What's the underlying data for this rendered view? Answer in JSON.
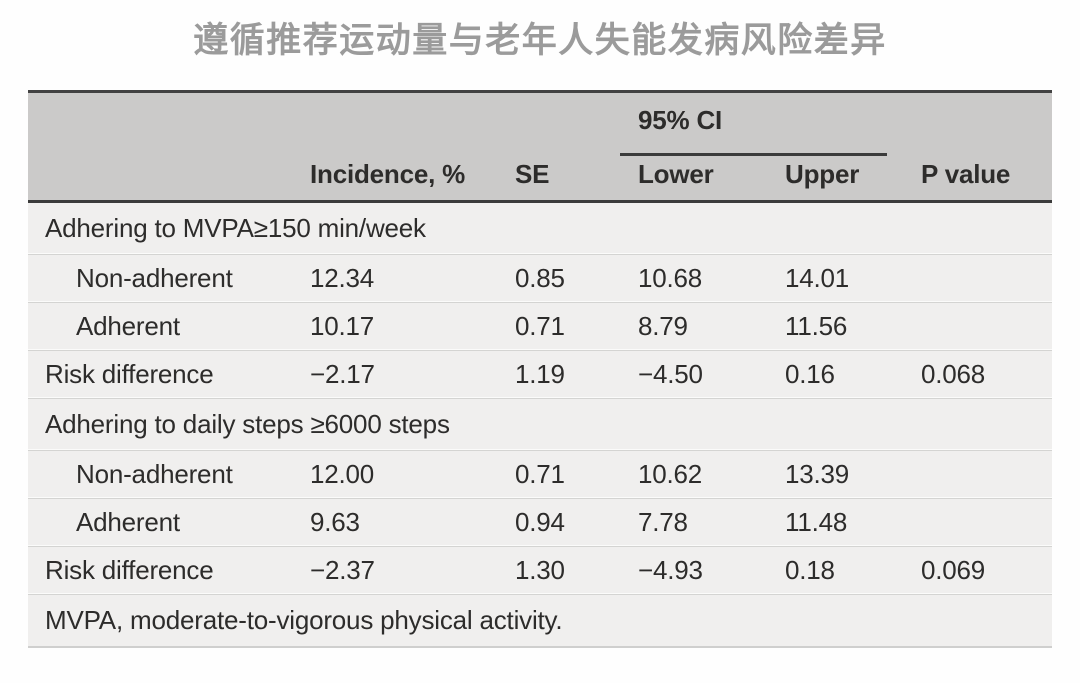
{
  "page": {
    "title": "遵循推荐运动量与老年人失能发病风险差异"
  },
  "table": {
    "header": {
      "ci_group_label": "95% CI",
      "columns": {
        "incidence": "Incidence, %",
        "se": "SE",
        "lower": "Lower",
        "upper": "Upper",
        "p": "P value"
      }
    },
    "sections": [
      {
        "label": "Adhering to MVPA≥150 min/week",
        "rows": [
          {
            "label": "Non-adherent",
            "incidence": "12.34",
            "se": "0.85",
            "lower": "10.68",
            "upper": "14.01",
            "p": ""
          },
          {
            "label": "Adherent",
            "incidence": "10.17",
            "se": "0.71",
            "lower": "8.79",
            "upper": "11.56",
            "p": ""
          },
          {
            "label": "Risk difference",
            "incidence": "−2.17",
            "se": "1.19",
            "lower": "−4.50",
            "upper": "0.16",
            "p": "0.068"
          }
        ]
      },
      {
        "label": "Adhering to daily steps ≥6000 steps",
        "rows": [
          {
            "label": "Non-adherent",
            "incidence": "12.00",
            "se": "0.71",
            "lower": "10.62",
            "upper": "13.39",
            "p": ""
          },
          {
            "label": "Adherent",
            "incidence": "9.63",
            "se": "0.94",
            "lower": "7.78",
            "upper": "11.48",
            "p": ""
          },
          {
            "label": "Risk difference",
            "incidence": "−2.37",
            "se": "1.30",
            "lower": "−4.93",
            "upper": "0.18",
            "p": "0.069"
          }
        ]
      }
    ],
    "footnote": "MVPA, moderate-to-vigorous physical activity.",
    "colors": {
      "header_bg": "#cbcac9",
      "body_bg": "#f0efee",
      "border_dark": "#3b3b3b",
      "text": "#2d2c2b",
      "title_text": "#9b9b9b"
    }
  }
}
